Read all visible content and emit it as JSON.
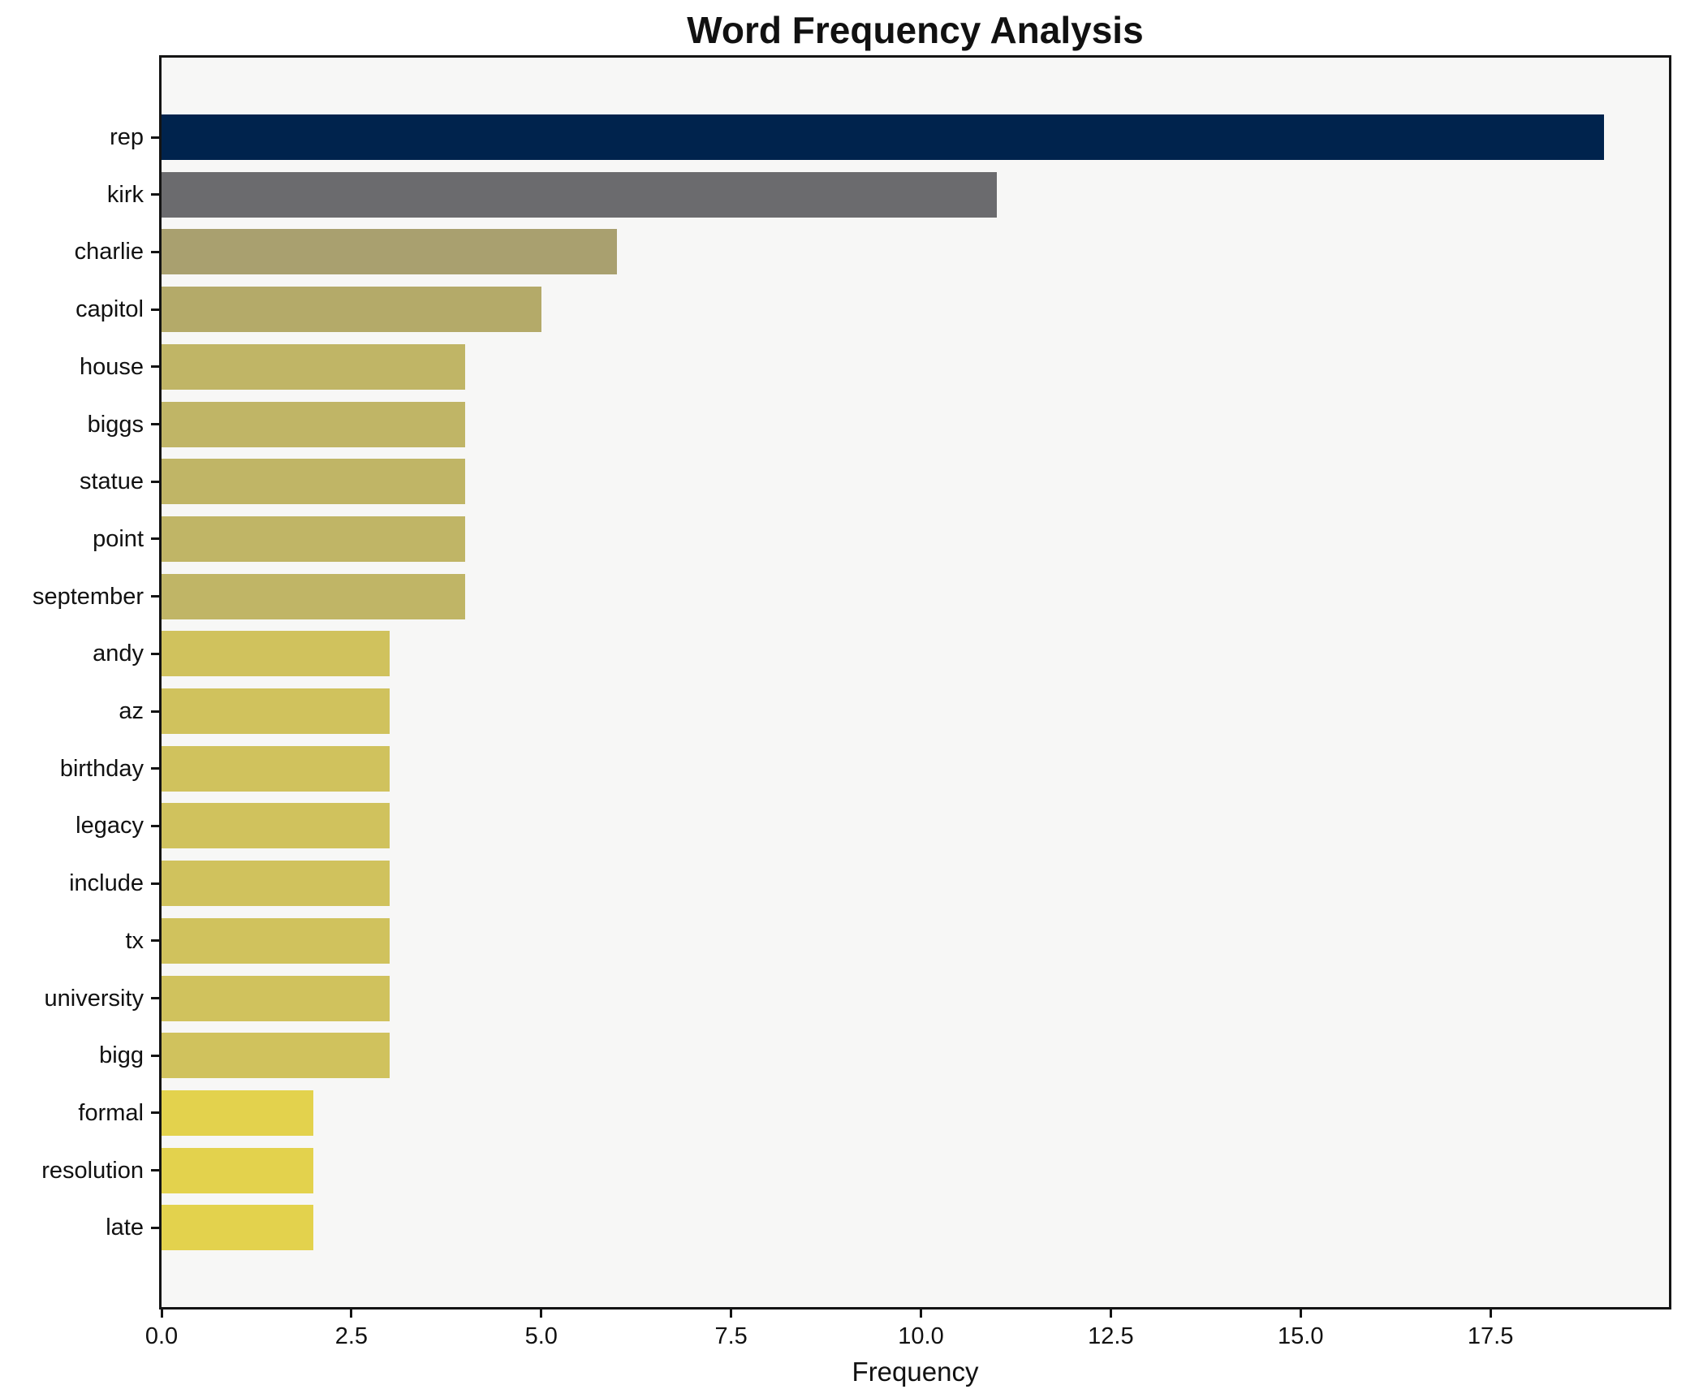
{
  "figure": {
    "title": "Word Frequency Analysis",
    "xlabel": "Frequency"
  },
  "colors": {
    "figure_bg": "#ffffff",
    "plot_bg": "#f7f7f6",
    "spine": "#141414",
    "text": "#111111",
    "bar_max": "#00234d",
    "bar_min": "#e3d24d"
  },
  "chart_data": {
    "type": "bar",
    "orientation": "horizontal",
    "title": "Word Frequency Analysis",
    "xlabel": "Frequency",
    "ylabel": "",
    "categories": [
      "rep",
      "kirk",
      "charlie",
      "capitol",
      "house",
      "biggs",
      "statue",
      "point",
      "september",
      "andy",
      "az",
      "birthday",
      "legacy",
      "include",
      "tx",
      "university",
      "bigg",
      "formal",
      "resolution",
      "late"
    ],
    "values": [
      19,
      11,
      6,
      5,
      4,
      4,
      4,
      4,
      4,
      3,
      3,
      3,
      3,
      3,
      3,
      3,
      3,
      2,
      2,
      2
    ],
    "bar_colors": [
      "#00234d",
      "#6b6b6e",
      "#a9a06f",
      "#b4aa69",
      "#c0b566",
      "#c0b566",
      "#c0b566",
      "#c0b566",
      "#c0b566",
      "#d0c25d",
      "#d0c25d",
      "#d0c25d",
      "#d0c25d",
      "#d0c25d",
      "#d0c25d",
      "#d0c25d",
      "#d0c25d",
      "#e3d24d",
      "#e3d24d",
      "#e3d24d"
    ],
    "xlim": [
      0,
      19.85
    ],
    "x_ticks": [
      0,
      2.5,
      5,
      7.5,
      10,
      12.5,
      15,
      17.5
    ],
    "x_tick_labels": [
      "0.0",
      "2.5",
      "5.0",
      "7.5",
      "10.0",
      "12.5",
      "15.0",
      "17.5"
    ],
    "grid": false,
    "legend": "none"
  }
}
